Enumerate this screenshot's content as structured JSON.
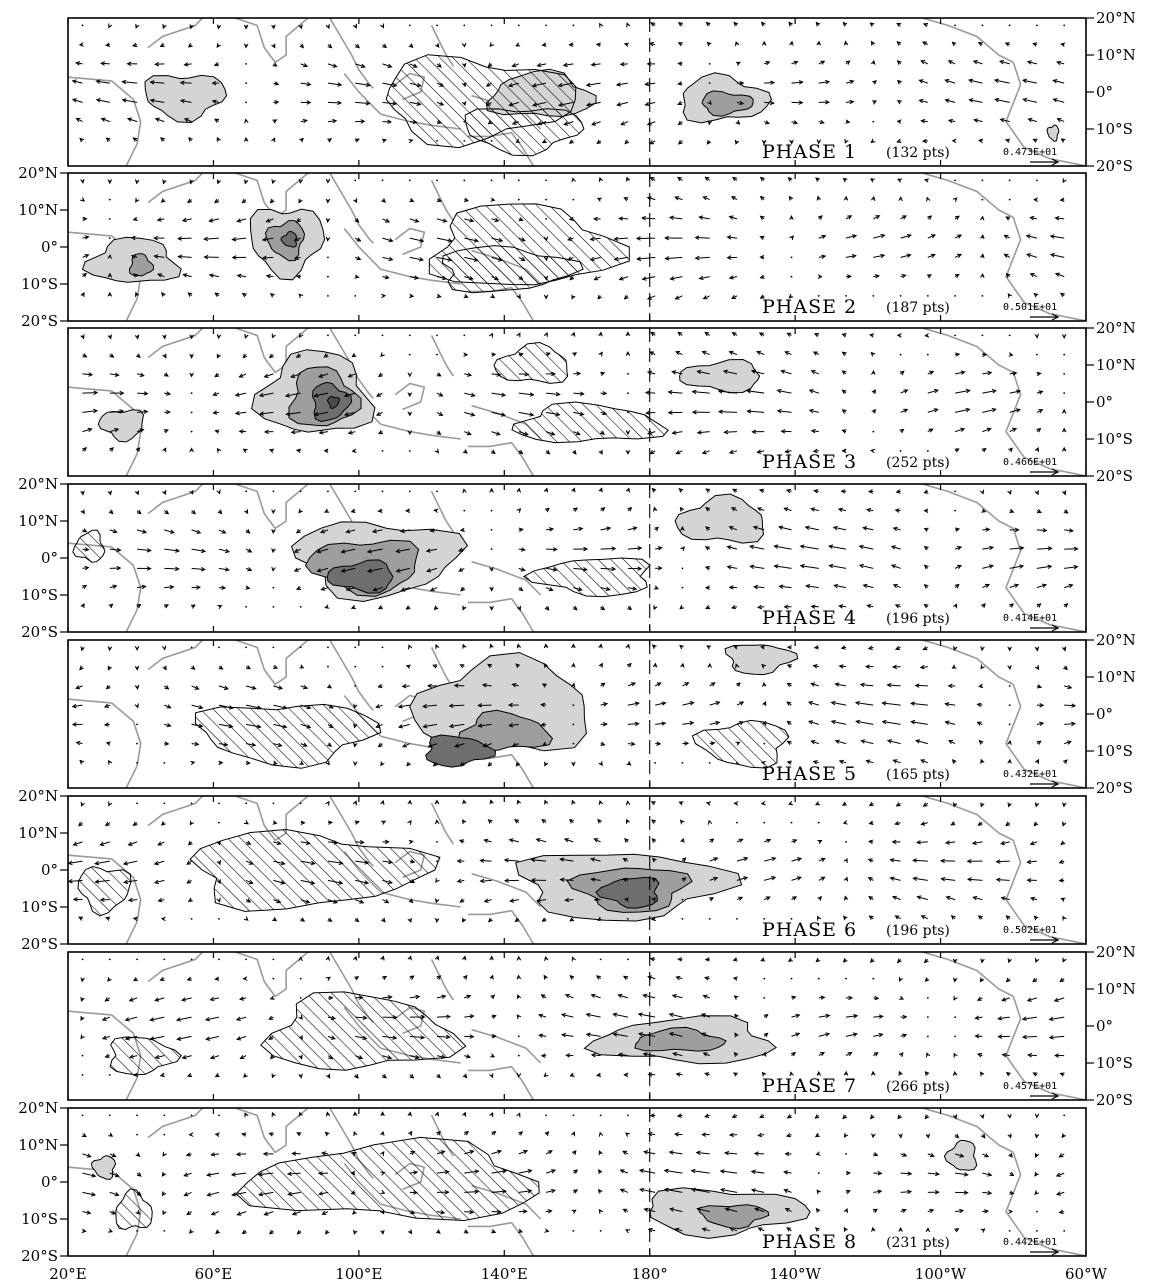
{
  "map": {
    "x_axis": {
      "labels": [
        "20°E",
        "60°E",
        "100°E",
        "140°E",
        "180°",
        "140°W",
        "100°W",
        "60°W"
      ],
      "lons": [
        20,
        60,
        100,
        140,
        180,
        220,
        260,
        300
      ]
    },
    "lat_labels": [
      "20°N",
      "10°N",
      "0°",
      "10°S",
      "20°S"
    ],
    "lats": [
      20,
      10,
      0,
      -10,
      -20
    ],
    "lon_range": [
      20,
      300
    ],
    "lat_range": [
      -20,
      20
    ],
    "dateline_lon": 180,
    "label_side": [
      "right",
      "left",
      "right",
      "left",
      "right",
      "left",
      "right",
      "left"
    ],
    "colors": {
      "light": "#d4d4d4",
      "mid": "#9e9e9e",
      "dark": "#6e6e6e",
      "coast": "#9a9a9a"
    }
  },
  "panels": [
    {
      "phase": "PHASE 1",
      "pts": "(132 pts)",
      "scale": "0.473E+01",
      "wet": [
        {
          "lon": 150,
          "lat": -1,
          "rx": 14,
          "ry": 6,
          "level": "light"
        },
        {
          "lon": 200,
          "lat": -2,
          "rx": 12,
          "ry": 6,
          "level": "light"
        },
        {
          "lon": 201,
          "lat": -3,
          "rx": 7,
          "ry": 3,
          "level": "mid"
        },
        {
          "lon": 52,
          "lat": -1,
          "rx": 11,
          "ry": 6,
          "level": "light"
        },
        {
          "lon": 291,
          "lat": -11,
          "rx": 1.5,
          "ry": 2,
          "level": "light"
        }
      ],
      "dry": [
        {
          "lon": 132,
          "lat": -2,
          "rx": 26,
          "ry": 11
        },
        {
          "lon": 145,
          "lat": -10,
          "rx": 16,
          "ry": 6
        }
      ]
    },
    {
      "phase": "PHASE 2",
      "pts": "(187 pts)",
      "scale": "0.501E+01",
      "wet": [
        {
          "lon": 80,
          "lat": 2,
          "rx": 10,
          "ry": 9,
          "level": "light"
        },
        {
          "lon": 80,
          "lat": 2,
          "rx": 5,
          "ry": 5,
          "level": "mid"
        },
        {
          "lon": 81,
          "lat": 2,
          "rx": 2,
          "ry": 2,
          "level": "dark"
        },
        {
          "lon": 38,
          "lat": -4,
          "rx": 12,
          "ry": 6,
          "level": "light"
        },
        {
          "lon": 40,
          "lat": -5,
          "rx": 3,
          "ry": 3,
          "level": "mid"
        }
      ],
      "dry": [
        {
          "lon": 145,
          "lat": 0,
          "rx": 25,
          "ry": 11
        },
        {
          "lon": 140,
          "lat": -6,
          "rx": 18,
          "ry": 6
        }
      ]
    },
    {
      "phase": "PHASE 3",
      "pts": "(252 pts)",
      "scale": "0.466E+01",
      "wet": [
        {
          "lon": 88,
          "lat": 2,
          "rx": 15,
          "ry": 11,
          "level": "light"
        },
        {
          "lon": 90,
          "lat": 1,
          "rx": 9,
          "ry": 8,
          "level": "mid"
        },
        {
          "lon": 92,
          "lat": 0,
          "rx": 5,
          "ry": 5,
          "level": "dark"
        },
        {
          "lon": 93,
          "lat": 0,
          "rx": 1.5,
          "ry": 1.5,
          "level": "darker"
        },
        {
          "lon": 35,
          "lat": -6,
          "rx": 6,
          "ry": 4,
          "level": "light"
        },
        {
          "lon": 200,
          "lat": 7,
          "rx": 11,
          "ry": 4,
          "level": "light"
        }
      ],
      "dry": [
        {
          "lon": 148,
          "lat": 10,
          "rx": 10,
          "ry": 5
        },
        {
          "lon": 163,
          "lat": -6,
          "rx": 20,
          "ry": 5
        }
      ]
    },
    {
      "phase": "PHASE 4",
      "pts": "(196 pts)",
      "scale": "0.414E+01",
      "wet": [
        {
          "lon": 105,
          "lat": 0,
          "rx": 22,
          "ry": 10,
          "level": "light"
        },
        {
          "lon": 102,
          "lat": -2,
          "rx": 15,
          "ry": 7,
          "level": "mid"
        },
        {
          "lon": 101,
          "lat": -5,
          "rx": 9,
          "ry": 4,
          "level": "dark"
        },
        {
          "lon": 200,
          "lat": 10,
          "rx": 12,
          "ry": 6,
          "level": "light"
        }
      ],
      "dry": [
        {
          "lon": 165,
          "lat": -5,
          "rx": 16,
          "ry": 5
        },
        {
          "lon": 26,
          "lat": 3,
          "rx": 4,
          "ry": 4
        }
      ]
    },
    {
      "phase": "PHASE 5",
      "pts": "(165 pts)",
      "scale": "0.432E+01",
      "wet": [
        {
          "lon": 140,
          "lat": 2,
          "rx": 24,
          "ry": 12,
          "level": "light"
        },
        {
          "lon": 140,
          "lat": -5,
          "rx": 12,
          "ry": 5,
          "level": "mid"
        },
        {
          "lon": 127,
          "lat": -10,
          "rx": 9,
          "ry": 4,
          "level": "dark"
        },
        {
          "lon": 210,
          "lat": 15,
          "rx": 9,
          "ry": 4,
          "level": "light"
        }
      ],
      "dry": [
        {
          "lon": 80,
          "lat": -5,
          "rx": 24,
          "ry": 8
        },
        {
          "lon": 206,
          "lat": -8,
          "rx": 12,
          "ry": 6
        }
      ]
    },
    {
      "phase": "PHASE 6",
      "pts": "(196 pts)",
      "scale": "0.502E+01",
      "wet": [
        {
          "lon": 172,
          "lat": -4,
          "rx": 28,
          "ry": 9,
          "level": "light"
        },
        {
          "lon": 175,
          "lat": -5,
          "rx": 15,
          "ry": 6,
          "level": "mid"
        },
        {
          "lon": 175,
          "lat": -6,
          "rx": 8,
          "ry": 4,
          "level": "dark"
        }
      ],
      "dry": [
        {
          "lon": 85,
          "lat": 0,
          "rx": 32,
          "ry": 10
        },
        {
          "lon": 30,
          "lat": -5,
          "rx": 7,
          "ry": 6
        }
      ]
    },
    {
      "phase": "PHASE 7",
      "pts": "(266 pts)",
      "scale": "0.457E+01",
      "wet": [
        {
          "lon": 190,
          "lat": -4,
          "rx": 24,
          "ry": 6,
          "level": "light"
        },
        {
          "lon": 188,
          "lat": -4,
          "rx": 12,
          "ry": 3,
          "level": "mid"
        }
      ],
      "dry": [
        {
          "lon": 100,
          "lat": -2,
          "rx": 25,
          "ry": 10
        },
        {
          "lon": 40,
          "lat": -8,
          "rx": 9,
          "ry": 5
        }
      ]
    },
    {
      "phase": "PHASE 8",
      "pts": "(231 pts)",
      "scale": "0.442E+01",
      "wet": [
        {
          "lon": 200,
          "lat": -8,
          "rx": 22,
          "ry": 6,
          "level": "light"
        },
        {
          "lon": 203,
          "lat": -9,
          "rx": 9,
          "ry": 3,
          "level": "mid"
        },
        {
          "lon": 30,
          "lat": 4,
          "rx": 3,
          "ry": 3,
          "level": "light"
        },
        {
          "lon": 266,
          "lat": 7,
          "rx": 4,
          "ry": 4,
          "level": "light"
        }
      ],
      "dry": [
        {
          "lon": 110,
          "lat": 0,
          "rx": 40,
          "ry": 10
        },
        {
          "lon": 38,
          "lat": -8,
          "rx": 5,
          "ry": 5
        }
      ]
    }
  ]
}
